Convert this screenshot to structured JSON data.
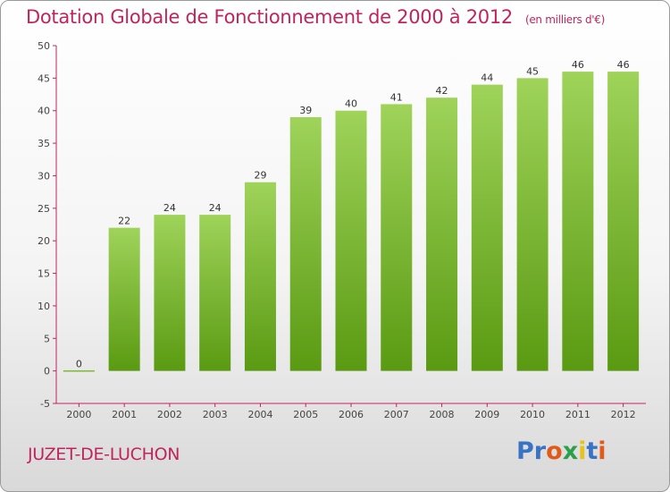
{
  "header": {
    "title": "Dotation Globale de Fonctionnement de 2000 à 2012",
    "subtitle": "(en milliers d'€)"
  },
  "footer": {
    "commune": "JUZET-DE-LUCHON",
    "logo_text": "Proxiti"
  },
  "colors": {
    "title": "#c0245c",
    "bar_top": "#9fd35a",
    "bar_bottom": "#5a9a12",
    "axis": "#c0245c",
    "logo": [
      "#3b73c4",
      "#3b73c4",
      "#e05a1a",
      "#2aa04a",
      "#e7c21a",
      "#3b73c4",
      "#e05a1a"
    ]
  },
  "chart_data": {
    "type": "bar",
    "categories": [
      "2000",
      "2001",
      "2002",
      "2003",
      "2004",
      "2005",
      "2006",
      "2007",
      "2008",
      "2009",
      "2010",
      "2011",
      "2012"
    ],
    "values": [
      0,
      22,
      24,
      24,
      29,
      39,
      40,
      41,
      42,
      44,
      45,
      46,
      46
    ],
    "title": "Dotation Globale de Fonctionnement de 2000 à 2012",
    "subtitle": "(en milliers d'€)",
    "xlabel": "",
    "ylabel": "",
    "ylim": [
      -5,
      50
    ],
    "yticks": [
      -5,
      0,
      5,
      10,
      15,
      20,
      25,
      30,
      35,
      40,
      45,
      50
    ],
    "grid": false,
    "legend": "none"
  }
}
